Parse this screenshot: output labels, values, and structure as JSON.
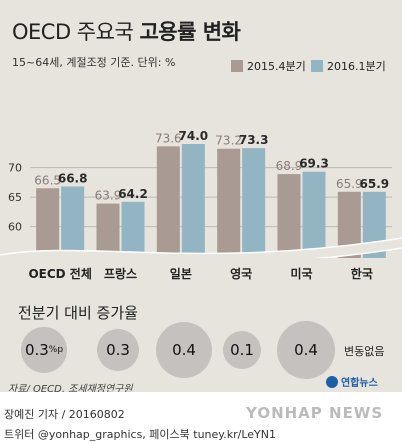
{
  "title": {
    "light": "OECD 주요국 ",
    "bold": "고용률 변화"
  },
  "subtitle": "15~64세, 계절조정 기준. 단위: %",
  "legend": {
    "s1": "2015.4분기",
    "s2": "2016.1분기"
  },
  "colors": {
    "s1": "#a99a93",
    "s2": "#93b5c3",
    "background": "#e7e3dd",
    "circle": "#c4c1be"
  },
  "chart_data": {
    "type": "bar",
    "categories": [
      "OECD 전체",
      "프랑스",
      "일본",
      "영국",
      "미국",
      "한국"
    ],
    "series": [
      {
        "name": "2015.4분기",
        "values": [
          66.5,
          63.9,
          73.6,
          73.2,
          68.9,
          65.9
        ]
      },
      {
        "name": "2016.1분기",
        "values": [
          66.8,
          64.2,
          74.0,
          73.3,
          69.3,
          65.9
        ]
      }
    ],
    "y_ticks": [
      60,
      65,
      70
    ],
    "ylim": [
      58,
      76
    ],
    "axis_break": true,
    "grid": true,
    "legend_position": "top-right",
    "title": "OECD 주요국 고용률 변화"
  },
  "growth": {
    "title": "전분기 대비 증가율",
    "values": [
      {
        "value": "0.3",
        "unit": "%p"
      },
      {
        "value": "0.3",
        "unit": ""
      },
      {
        "value": "0.4",
        "unit": ""
      },
      {
        "value": "0.1",
        "unit": ""
      },
      {
        "value": "0.4",
        "unit": ""
      }
    ],
    "no_change_label": "변동없음"
  },
  "source": "자료/ OECD, 조세재정연구원",
  "logo_text": "연합뉴스",
  "credit_line1": "장예진 기자 / 20160802",
  "credit_line2": "트위터 @yonhap_graphics, 페이스북 tuney.kr/LeYN1",
  "watermark": "YONHAP NEWS"
}
